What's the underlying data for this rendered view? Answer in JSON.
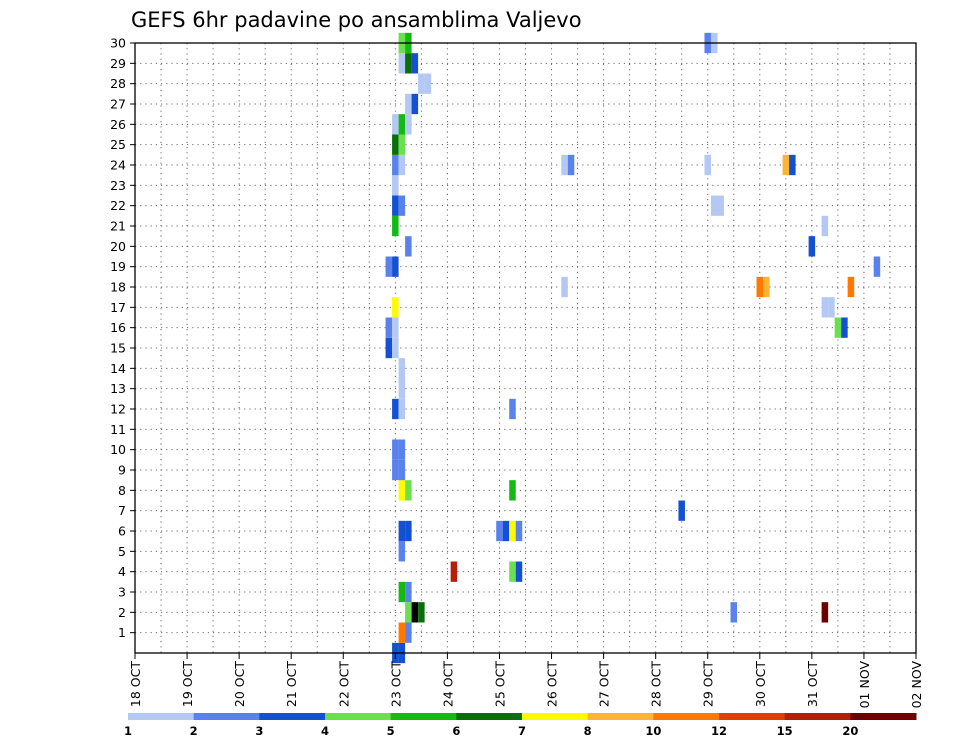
{
  "chart_data": {
    "type": "heatmap",
    "title": "GEFS 6hr padavine po ansamblima Valjevo",
    "xlabel": "",
    "ylabel": "",
    "x_ticks": [
      "18 OCT",
      "19 OCT",
      "20 OCT",
      "21 OCT",
      "22 OCT",
      "23 OCT",
      "24 OCT",
      "25 OCT",
      "26 OCT",
      "27 OCT",
      "28 OCT",
      "29 OCT",
      "30 OCT",
      "31 OCT",
      "01 NOV",
      "02 NOV"
    ],
    "y_ticks": [
      "1",
      "2",
      "3",
      "4",
      "5",
      "6",
      "7",
      "8",
      "9",
      "10",
      "11",
      "12",
      "13",
      "14",
      "15",
      "16",
      "17",
      "18",
      "19",
      "20",
      "21",
      "22",
      "23",
      "24",
      "25",
      "26",
      "27",
      "28",
      "29",
      "30"
    ],
    "x_unit": "6-hour steps from 18 OCT 00Z",
    "x_range": [
      0,
      60
    ],
    "y_range": [
      0,
      30
    ],
    "grid": true,
    "colorbar": {
      "labels": [
        "1",
        "2",
        "3",
        "4",
        "5",
        "6",
        "7",
        "8",
        "10",
        "12",
        "15",
        "20"
      ],
      "colors": [
        "#b4c8f4",
        "#5a82ec",
        "#1450d2",
        "#6ae050",
        "#14b914",
        "#0a6e0a",
        "#fffa00",
        "#ffb432",
        "#ff7800",
        "#e13c0a",
        "#b41e0a",
        "#6e0000"
      ]
    },
    "cells": [
      [
        20,
        0,
        2
      ],
      [
        20.5,
        0,
        2
      ],
      [
        20.5,
        1,
        8
      ],
      [
        21,
        1,
        1
      ],
      [
        21,
        2,
        3
      ],
      [
        21.5,
        2,
        14
      ],
      [
        22,
        2,
        5
      ],
      [
        46,
        2,
        1
      ],
      [
        53,
        2,
        11
      ],
      [
        20.5,
        3,
        4
      ],
      [
        21,
        3,
        1
      ],
      [
        24.5,
        4,
        10
      ],
      [
        29,
        4,
        3
      ],
      [
        29.5,
        4,
        2
      ],
      [
        20.5,
        5,
        1
      ],
      [
        20.5,
        6,
        2
      ],
      [
        21,
        6,
        2
      ],
      [
        28,
        6,
        1
      ],
      [
        28.5,
        6,
        2
      ],
      [
        29,
        6,
        6
      ],
      [
        29.5,
        6,
        1
      ],
      [
        42,
        7,
        2
      ],
      [
        20.5,
        8,
        6
      ],
      [
        21,
        8,
        3
      ],
      [
        29,
        8,
        4
      ],
      [
        20,
        9,
        1
      ],
      [
        20.5,
        9,
        1
      ],
      [
        20,
        10,
        1
      ],
      [
        20.5,
        10,
        1
      ],
      [
        20,
        12,
        2
      ],
      [
        20.5,
        12,
        0
      ],
      [
        29,
        12,
        1
      ],
      [
        20.5,
        13,
        0
      ],
      [
        20.5,
        14,
        0
      ],
      [
        19.5,
        15,
        2
      ],
      [
        20,
        15,
        0
      ],
      [
        19.5,
        16,
        1
      ],
      [
        20,
        16,
        0
      ],
      [
        54,
        16,
        3
      ],
      [
        54.5,
        16,
        2
      ],
      [
        20,
        17,
        6
      ],
      [
        53,
        17,
        0
      ],
      [
        53.5,
        17,
        0
      ],
      [
        33,
        18,
        0
      ],
      [
        48,
        18,
        8
      ],
      [
        48.5,
        18,
        7
      ],
      [
        55,
        18,
        8
      ],
      [
        19.5,
        19,
        1
      ],
      [
        20,
        19,
        2
      ],
      [
        57,
        19,
        1
      ],
      [
        21,
        20,
        1
      ],
      [
        52,
        20,
        2
      ],
      [
        20,
        21,
        4
      ],
      [
        53,
        21,
        0
      ],
      [
        20,
        22,
        2
      ],
      [
        20.5,
        22,
        1
      ],
      [
        44.5,
        22,
        0
      ],
      [
        45,
        22,
        0
      ],
      [
        20,
        23,
        0
      ],
      [
        20,
        24,
        1
      ],
      [
        20.5,
        24,
        0
      ],
      [
        33,
        24,
        0
      ],
      [
        33.5,
        24,
        1
      ],
      [
        44,
        24,
        0
      ],
      [
        50,
        24,
        7
      ],
      [
        50.5,
        24,
        2
      ],
      [
        20,
        25,
        5
      ],
      [
        20.5,
        25,
        3
      ],
      [
        20,
        26,
        0
      ],
      [
        20.5,
        26,
        4
      ],
      [
        21,
        26,
        0
      ],
      [
        21,
        27,
        0
      ],
      [
        21.5,
        27,
        2
      ],
      [
        22,
        28,
        0
      ],
      [
        22.5,
        28,
        0
      ],
      [
        20.5,
        29,
        0
      ],
      [
        21,
        29,
        5
      ],
      [
        21.5,
        29,
        2
      ],
      [
        20.5,
        30,
        3
      ],
      [
        21,
        30,
        4
      ],
      [
        44,
        30,
        1
      ],
      [
        44.5,
        30,
        0
      ]
    ]
  }
}
